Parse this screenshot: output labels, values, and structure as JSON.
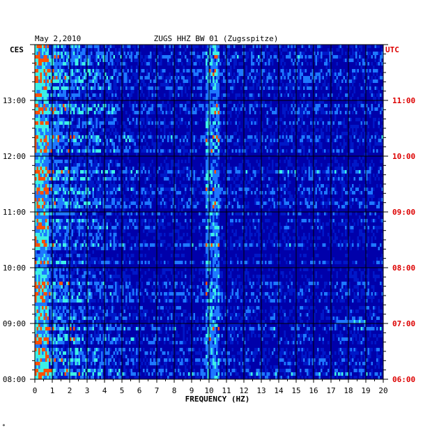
{
  "chart_data": {
    "type": "heatmap",
    "title": "ZUGS HHZ BW 01 (Zugsspitze)",
    "date": "May 2,2010",
    "xlabel": "FREQUENCY (HZ)",
    "xlim": [
      0,
      20
    ],
    "x_ticks": [
      "0",
      "1",
      "2",
      "3",
      "4",
      "5",
      "6",
      "7",
      "8",
      "9",
      "10",
      "11",
      "12",
      "13",
      "14",
      "15",
      "16",
      "17",
      "18",
      "19",
      "20"
    ],
    "left_axis": {
      "label": "CES",
      "ticks": [
        "13:00",
        "12:00",
        "11:00",
        "10:00",
        "09:00",
        "08:00"
      ]
    },
    "right_axis": {
      "label": "UTC",
      "color": "#dd0000",
      "ticks": [
        "11:00",
        "10:00",
        "09:00",
        "08:00",
        "07:00",
        "06:00"
      ]
    },
    "time_range_hours": [
      8,
      14
    ],
    "colors": {
      "background": "#0000aa",
      "low": "#0018c8",
      "mid": "#1e78ff",
      "high": "#3cf0e6",
      "peak": "#ff5000",
      "gridline": "#000000",
      "utc_text": "#dd0000"
    },
    "notable_features": [
      {
        "frequency_hz": 10.2,
        "description": "persistent narrow band"
      },
      {
        "frequency_hz": 0.4,
        "description": "low-frequency energy"
      },
      {
        "frequency_hz": 18.0,
        "time": "09:00",
        "description": "short burst"
      }
    ]
  },
  "corner_mark": "*"
}
